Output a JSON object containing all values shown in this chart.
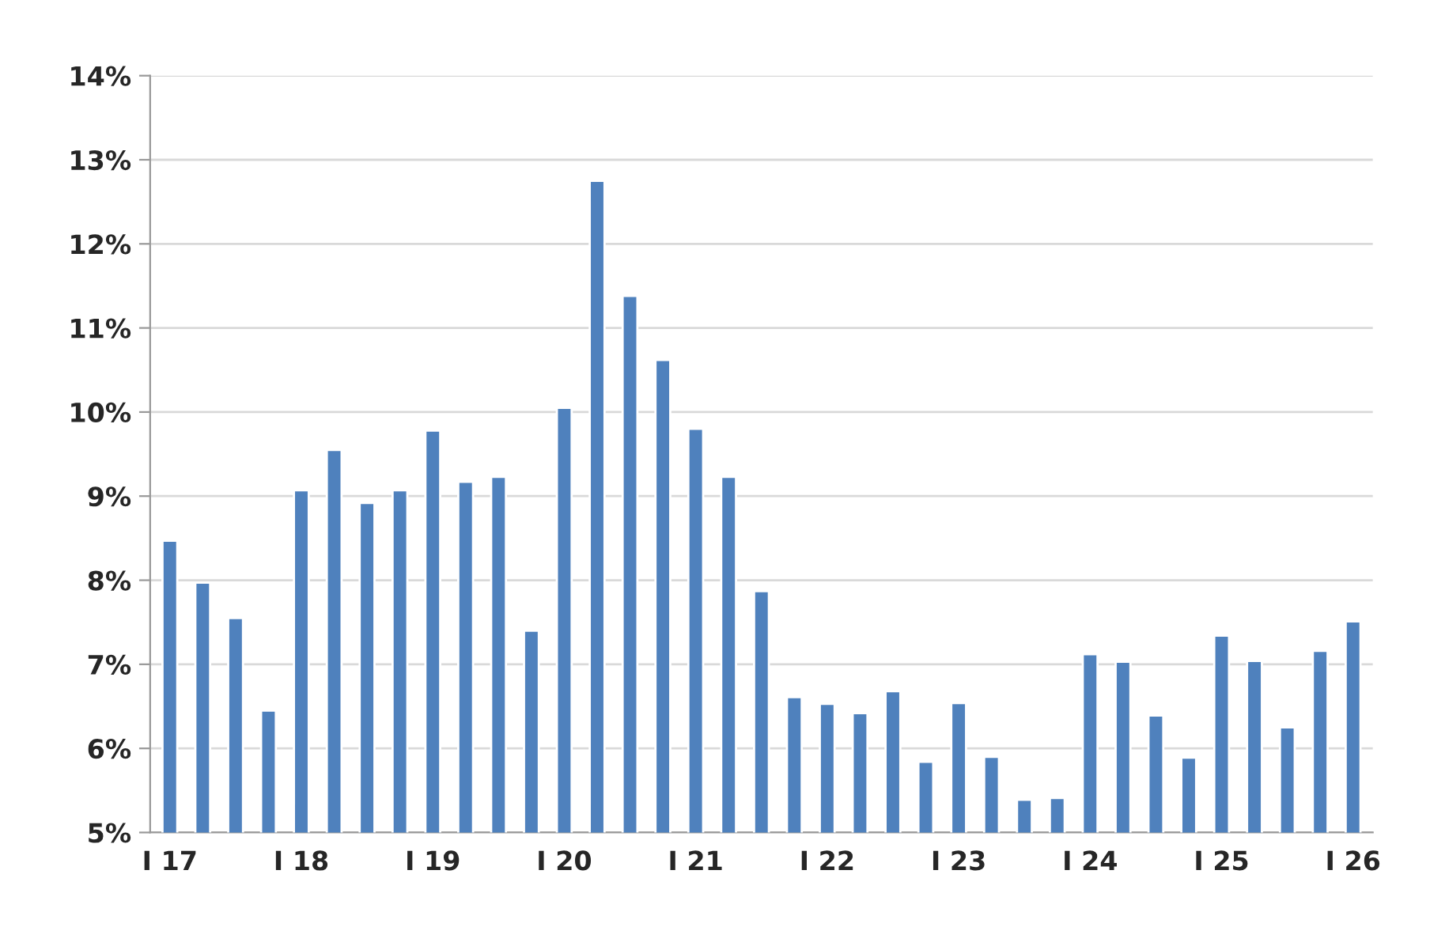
{
  "chart_data": {
    "type": "bar",
    "categories": [
      "I 17",
      null,
      null,
      null,
      "I 18",
      null,
      null,
      null,
      "I 19",
      null,
      null,
      null,
      "I 20",
      null,
      null,
      null,
      "I 21",
      null,
      null,
      null,
      "I 22",
      null,
      null,
      null,
      "I 23",
      null,
      null,
      null,
      "I 24",
      null,
      null,
      null,
      "I 25",
      null,
      null,
      null,
      "I 26"
    ],
    "values": [
      8.47,
      7.97,
      7.55,
      6.45,
      9.07,
      9.55,
      8.92,
      9.07,
      9.78,
      9.17,
      9.23,
      7.4,
      10.05,
      12.75,
      11.38,
      10.62,
      9.8,
      9.23,
      7.87,
      6.61,
      6.53,
      6.42,
      6.68,
      5.84,
      6.54,
      5.9,
      5.39,
      5.41,
      7.12,
      7.03,
      6.39,
      5.89,
      7.34,
      7.04,
      6.25,
      7.16,
      7.51
    ],
    "color": "#4f81bd",
    "ylim": [
      5,
      14
    ],
    "yticks": [
      {
        "value": 5,
        "label": "5%"
      },
      {
        "value": 6,
        "label": "6%"
      },
      {
        "value": 7,
        "label": "7%"
      },
      {
        "value": 8,
        "label": "8%"
      },
      {
        "value": 9,
        "label": "9%"
      },
      {
        "value": 10,
        "label": "10%"
      },
      {
        "value": 11,
        "label": "11%"
      },
      {
        "value": 12,
        "label": "12%"
      },
      {
        "value": 13,
        "label": "13%"
      },
      {
        "value": 14,
        "label": "14%"
      }
    ],
    "grid": "y"
  }
}
